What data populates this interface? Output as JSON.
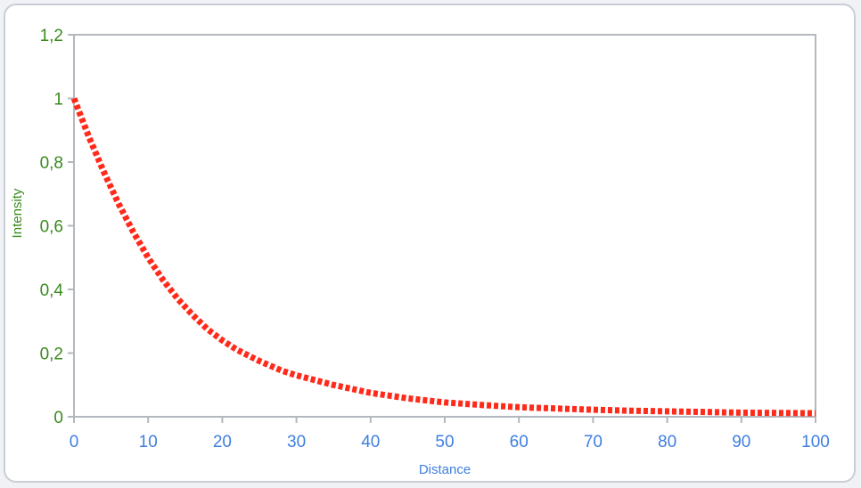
{
  "chart_data": {
    "type": "line",
    "title": "",
    "xlabel": "Distance",
    "ylabel": "Intensity",
    "xlim": [
      0,
      100
    ],
    "ylim": [
      0,
      1.2
    ],
    "x_ticks": [
      "0",
      "10",
      "20",
      "30",
      "40",
      "50",
      "60",
      "70",
      "80",
      "90",
      "100"
    ],
    "y_ticks": [
      "0",
      "0,2",
      "0,4",
      "0,6",
      "0,8",
      "1",
      "1,2"
    ],
    "grid": false,
    "legend": "none",
    "series": [
      {
        "color": "#ff2a1a",
        "line_style": "dotted",
        "x": [
          0,
          2,
          4,
          6,
          8,
          10,
          12,
          14,
          16,
          18,
          20,
          22,
          25,
          28,
          30,
          35,
          40,
          45,
          50,
          55,
          60,
          65,
          70,
          75,
          80,
          85,
          90,
          95,
          100
        ],
        "y": [
          1.0,
          0.88,
          0.77,
          0.67,
          0.58,
          0.5,
          0.43,
          0.37,
          0.32,
          0.275,
          0.24,
          0.21,
          0.175,
          0.145,
          0.13,
          0.1,
          0.075,
          0.058,
          0.045,
          0.037,
          0.03,
          0.026,
          0.022,
          0.019,
          0.017,
          0.015,
          0.013,
          0.012,
          0.011
        ]
      }
    ],
    "colors": {
      "y_axis_text": "#3a8a1e",
      "x_axis_text": "#3f7fe0",
      "frame": "#b3b8bf"
    }
  }
}
